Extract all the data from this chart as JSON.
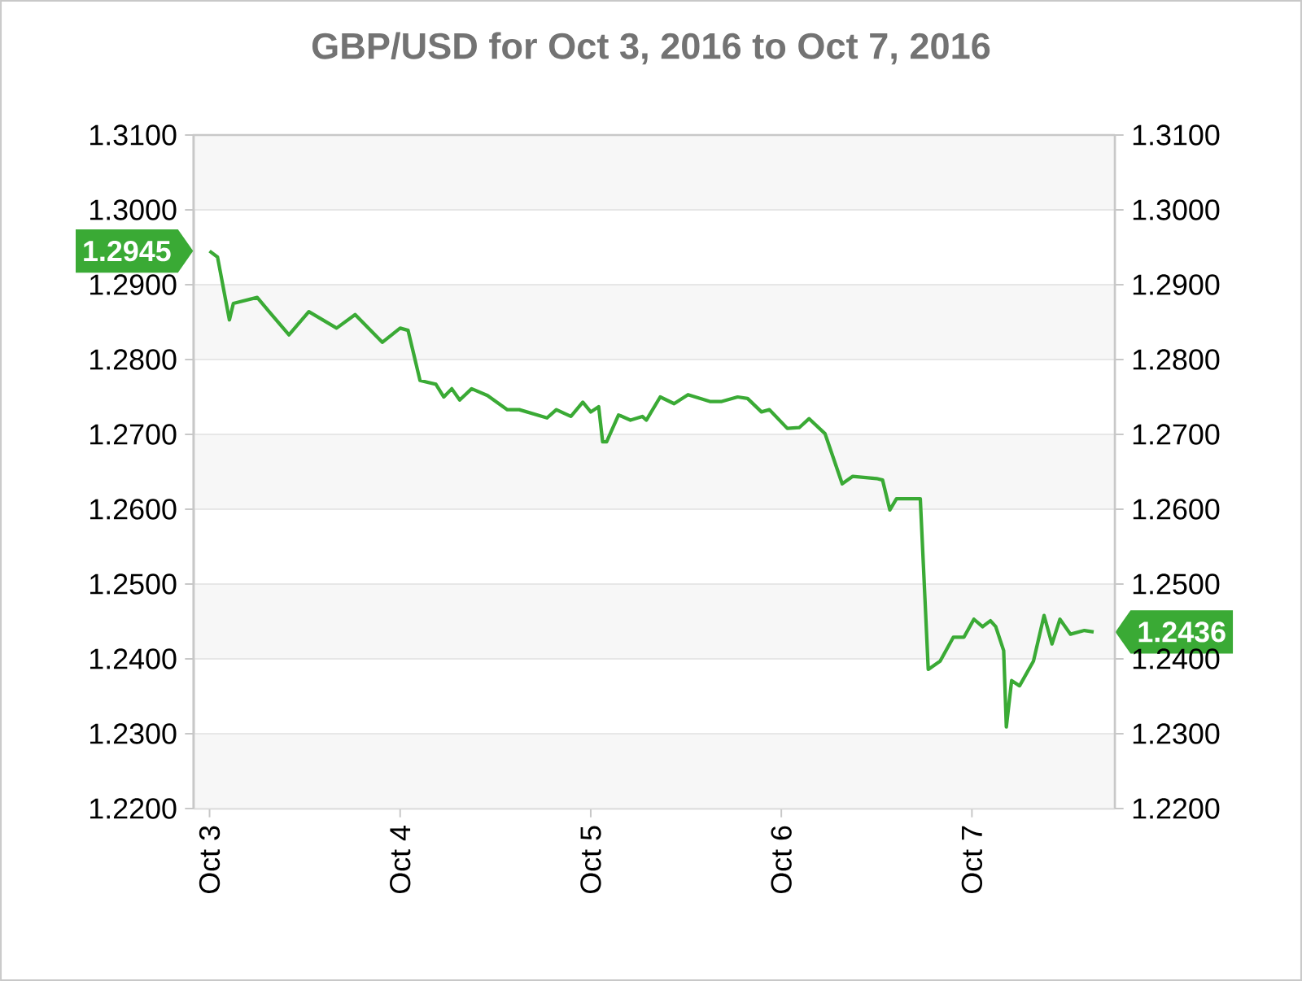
{
  "chart_data": {
    "type": "line",
    "title": "GBP/USD for Oct 3, 2016 to Oct 7, 2016",
    "color": "#3aaa35",
    "grid": "y",
    "line_style": "solid",
    "x": [
      "2016-10-03T00:00",
      "2016-10-03T01:00",
      "2016-10-03T02:30",
      "2016-10-03T03:00",
      "2016-10-03T06:00",
      "2016-10-03T07:30",
      "2016-10-03T10:00",
      "2016-10-03T12:30",
      "2016-10-03T16:00",
      "2016-10-03T18:20",
      "2016-10-03T21:45",
      "2016-10-04T00:00",
      "2016-10-04T01:00",
      "2016-10-04T02:30",
      "2016-10-04T04:30",
      "2016-10-04T05:30",
      "2016-10-04T06:30",
      "2016-10-04T07:30",
      "2016-10-04T09:00",
      "2016-10-04T11:00",
      "2016-10-04T13:30",
      "2016-10-04T15:00",
      "2016-10-04T18:30",
      "2016-10-04T19:40",
      "2016-10-04T21:30",
      "2016-10-04T23:00",
      "2016-10-05T00:00",
      "2016-10-05T01:00",
      "2016-10-05T01:30",
      "2016-10-05T02:00",
      "2016-10-05T03:30",
      "2016-10-05T05:00",
      "2016-10-05T06:30",
      "2016-10-05T07:00",
      "2016-10-05T08:45",
      "2016-10-05T10:30",
      "2016-10-05T12:15",
      "2016-10-05T15:00",
      "2016-10-05T16:30",
      "2016-10-05T18:30",
      "2016-10-05T19:45",
      "2016-10-05T21:30",
      "2016-10-05T22:30",
      "2016-10-06T00:45",
      "2016-10-06T02:15",
      "2016-10-06T03:30",
      "2016-10-06T05:30",
      "2016-10-06T07:40",
      "2016-10-06T09:00",
      "2016-10-06T12:00",
      "2016-10-06T12:45",
      "2016-10-06T13:40",
      "2016-10-06T14:30",
      "2016-10-06T17:30",
      "2016-10-06T18:30",
      "2016-10-06T20:00",
      "2016-10-06T21:40",
      "2016-10-06T23:00",
      "2016-10-07T00:15",
      "2016-10-07T01:20",
      "2016-10-07T02:20",
      "2016-10-07T03:00",
      "2016-10-07T04:00",
      "2016-10-07T04:20",
      "2016-10-07T05:00",
      "2016-10-07T06:00",
      "2016-10-07T07:45",
      "2016-10-07T09:05",
      "2016-10-07T10:05",
      "2016-10-07T11:05",
      "2016-10-07T12:25",
      "2016-10-07T14:10",
      "2016-10-07T15:20"
    ],
    "values": [
      1.2945,
      1.2937,
      1.2853,
      1.2875,
      1.2883,
      1.2864,
      1.2833,
      1.2864,
      1.2842,
      1.286,
      1.2823,
      1.2842,
      1.2839,
      1.2772,
      1.2767,
      1.275,
      1.2761,
      1.2746,
      1.2761,
      1.2752,
      1.2733,
      1.2733,
      1.2722,
      1.2733,
      1.2724,
      1.2743,
      1.273,
      1.2737,
      1.269,
      1.269,
      1.2726,
      1.2719,
      1.2724,
      1.2719,
      1.275,
      1.2741,
      1.2753,
      1.2744,
      1.2744,
      1.275,
      1.2748,
      1.273,
      1.2733,
      1.2708,
      1.2709,
      1.2721,
      1.2701,
      1.2634,
      1.2644,
      1.2641,
      1.2639,
      1.2599,
      1.2614,
      1.2614,
      1.2386,
      1.2397,
      1.2429,
      1.2429,
      1.2453,
      1.2443,
      1.2451,
      1.2443,
      1.2411,
      1.2309,
      1.2371,
      1.2364,
      1.2397,
      1.2458,
      1.242,
      1.2453,
      1.2433,
      1.2438,
      1.2436
    ],
    "xlim": [
      "2016-10-02T22:00",
      "2016-10-07T18:00"
    ],
    "xticks": [
      {
        "value": "2016-10-03",
        "label": "Oct 3"
      },
      {
        "value": "2016-10-04",
        "label": "Oct 4"
      },
      {
        "value": "2016-10-05",
        "label": "Oct 5"
      },
      {
        "value": "2016-10-06",
        "label": "Oct 6"
      },
      {
        "value": "2016-10-07",
        "label": "Oct 7"
      }
    ],
    "ylim": [
      1.22,
      1.31
    ],
    "yticks": [
      {
        "value": 1.22,
        "label": "1.2200"
      },
      {
        "value": 1.23,
        "label": "1.2300"
      },
      {
        "value": 1.24,
        "label": "1.2400"
      },
      {
        "value": 1.25,
        "label": "1.2500"
      },
      {
        "value": 1.26,
        "label": "1.2600"
      },
      {
        "value": 1.27,
        "label": "1.2700"
      },
      {
        "value": 1.28,
        "label": "1.2800"
      },
      {
        "value": 1.29,
        "label": "1.2900"
      },
      {
        "value": 1.3,
        "label": "1.3000"
      },
      {
        "value": 1.31,
        "label": "1.3100"
      }
    ],
    "y2lim": [
      1.22,
      1.31
    ],
    "y2ticks": [
      {
        "value": 1.22,
        "label": "1.2200"
      },
      {
        "value": 1.23,
        "label": "1.2300"
      },
      {
        "value": 1.24,
        "label": "1.2400"
      },
      {
        "value": 1.25,
        "label": "1.2500"
      },
      {
        "value": 1.26,
        "label": "1.2600"
      },
      {
        "value": 1.27,
        "label": "1.2700"
      },
      {
        "value": 1.28,
        "label": "1.2800"
      },
      {
        "value": 1.29,
        "label": "1.2900"
      },
      {
        "value": 1.3,
        "label": "1.3000"
      },
      {
        "value": 1.31,
        "label": "1.3100"
      }
    ],
    "annotations": [
      {
        "text": "1.2945",
        "x": "2016-10-03T00:00",
        "y": 1.2945
      },
      {
        "text": "1.2436",
        "x": "2016-10-07T15:20",
        "y": 1.2436
      }
    ]
  }
}
